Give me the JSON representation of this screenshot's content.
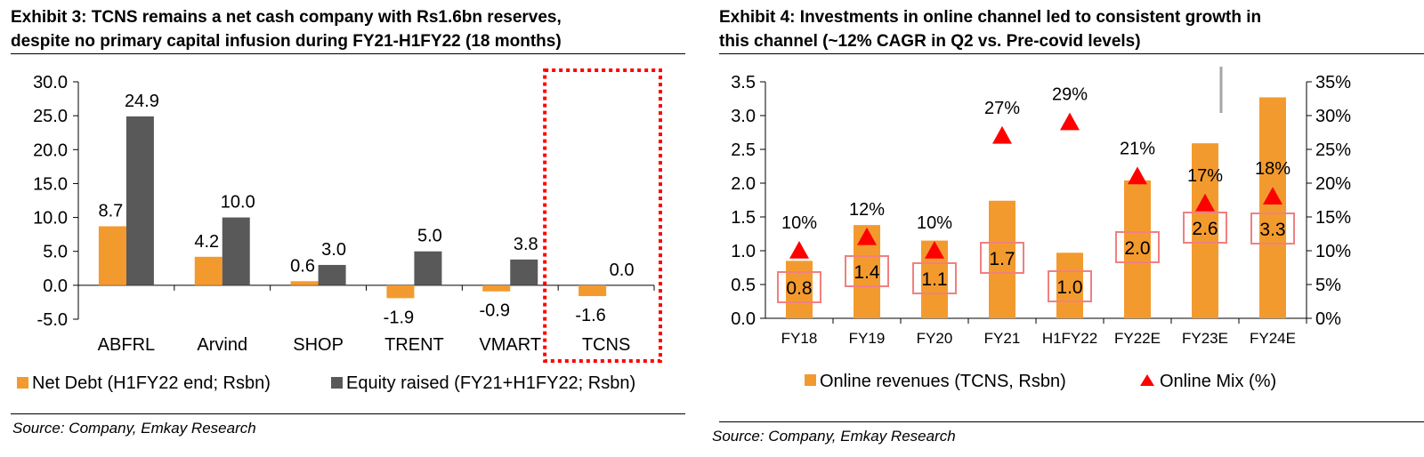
{
  "left": {
    "title_line1": "Exhibit 3: TCNS remains a net cash company with Rs1.6bn reserves,",
    "title_line2": "despite no primary capital infusion during FY21-H1FY22 (18 months)",
    "source": "Source: Company, Emkay Research"
  },
  "right": {
    "title_line1": "Exhibit 4: Investments in online channel led to consistent growth in",
    "title_line2": "this channel (~12% CAGR in Q2 vs. Pre-covid levels)",
    "source": "Source: Company, Emkay Research"
  },
  "chart_data": [
    {
      "type": "bar",
      "categories": [
        "ABFRL",
        "Arvind",
        "SHOP",
        "TRENT",
        "VMART",
        "TCNS"
      ],
      "series": [
        {
          "name": "Net Debt (H1FY22 end; Rsbn)",
          "values": [
            8.7,
            4.2,
            0.6,
            -1.9,
            -0.9,
            -1.6
          ],
          "color": "#F39A2F"
        },
        {
          "name": "Equity raised (FY21+H1FY22; Rsbn)",
          "values": [
            24.9,
            10.0,
            3.0,
            5.0,
            3.8,
            0.0
          ],
          "color": "#595959"
        }
      ],
      "value_labels": [
        [
          "8.7",
          "4.2",
          "0.6",
          "-1.9",
          "-0.9",
          "-1.6"
        ],
        [
          "24.9",
          "10.0",
          "3.0",
          "5.0",
          "3.8",
          "0.0"
        ]
      ],
      "yticks": [
        "30.0",
        "25.0",
        "20.0",
        "15.0",
        "10.0",
        "5.0",
        "0.0",
        "-5.0"
      ],
      "ylim": [
        -5,
        30
      ],
      "highlight": {
        "category": "TCNS",
        "color": "#FF0000",
        "style": "dotted"
      },
      "legend_position": "bottom"
    },
    {
      "type": "bar",
      "categories": [
        "FY18",
        "FY19",
        "FY20",
        "FY21",
        "H1FY22",
        "FY22E",
        "FY23E",
        "FY24E"
      ],
      "series": [
        {
          "name": "Online revenues (TCNS, Rsbn)",
          "values": [
            0.85,
            1.38,
            1.15,
            1.74,
            0.97,
            2.04,
            2.59,
            3.27
          ],
          "color": "#F39A2F",
          "axis": "left"
        },
        {
          "name": "Online Mix (%)",
          "values": [
            10,
            12,
            10,
            27,
            29,
            21,
            17,
            18
          ],
          "color": "#FF0000",
          "marker": "triangle",
          "axis": "right"
        }
      ],
      "bar_labels": [
        "0.8",
        "1.4",
        "1.1",
        "1.7",
        "1.0",
        "2.0",
        "2.6",
        "3.3"
      ],
      "mix_labels": [
        "10%",
        "12%",
        "10%",
        "27%",
        "29%",
        "21%",
        "17%",
        "18%"
      ],
      "yticks_left": [
        "3.5",
        "3.0",
        "2.5",
        "2.0",
        "1.5",
        "1.0",
        "0.5",
        "0.0"
      ],
      "yticks_right": [
        "35%",
        "30%",
        "25%",
        "20%",
        "15%",
        "10%",
        "5%",
        "0%"
      ],
      "ylim_left": [
        0,
        3.5
      ],
      "ylim_right": [
        0,
        35
      ],
      "legend_position": "bottom"
    }
  ]
}
